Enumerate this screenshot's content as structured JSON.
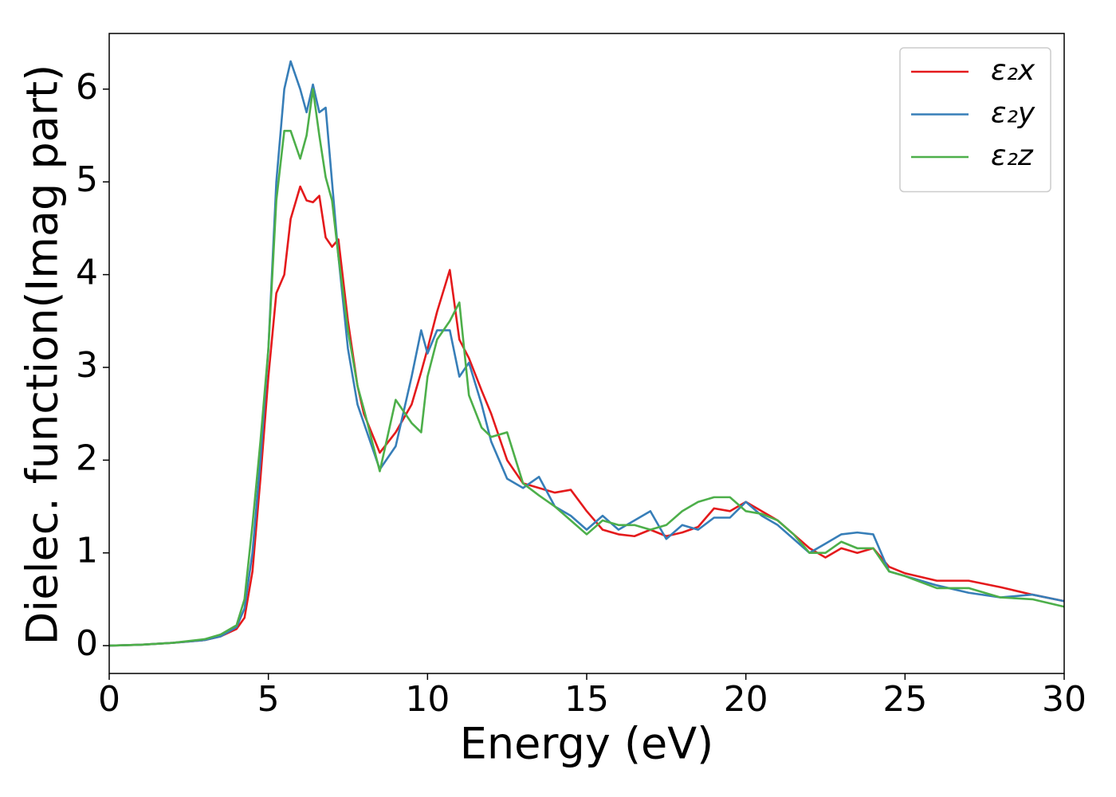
{
  "chart_data": {
    "type": "line",
    "xlabel": "Energy (eV)",
    "ylabel": "Dielec. function(Imag part)",
    "x": [
      0,
      1,
      2,
      3,
      3.5,
      4,
      4.25,
      4.5,
      4.75,
      5,
      5.25,
      5.5,
      5.7,
      6,
      6.2,
      6.4,
      6.6,
      6.8,
      7,
      7.2,
      7.5,
      7.8,
      8,
      8.5,
      9,
      9.5,
      9.8,
      10,
      10.3,
      10.7,
      11,
      11.3,
      11.7,
      12,
      12.5,
      13,
      13.5,
      14,
      14.5,
      15,
      15.5,
      16,
      16.5,
      17,
      17.5,
      18,
      18.5,
      19,
      19.5,
      20,
      20.5,
      21,
      21.5,
      22,
      22.5,
      23,
      23.5,
      24,
      24.5,
      25,
      26,
      27,
      28,
      29,
      30
    ],
    "series": [
      {
        "name": "ε₂x",
        "color": "#e41a1c",
        "values": [
          0,
          0.01,
          0.03,
          0.06,
          0.1,
          0.18,
          0.3,
          0.8,
          1.8,
          2.9,
          3.8,
          4.0,
          4.6,
          4.95,
          4.8,
          4.78,
          4.85,
          4.4,
          4.3,
          4.38,
          3.5,
          2.8,
          2.5,
          2.08,
          2.3,
          2.6,
          2.95,
          3.2,
          3.6,
          4.05,
          3.3,
          3.1,
          2.75,
          2.5,
          2.0,
          1.75,
          1.7,
          1.65,
          1.68,
          1.45,
          1.25,
          1.2,
          1.18,
          1.25,
          1.18,
          1.22,
          1.28,
          1.48,
          1.45,
          1.55,
          1.45,
          1.35,
          1.2,
          1.05,
          0.95,
          1.05,
          1.0,
          1.05,
          0.85,
          0.78,
          0.7,
          0.7,
          0.63,
          0.55,
          0.48
        ]
      },
      {
        "name": "ε₂y",
        "color": "#377eb8",
        "values": [
          0,
          0.01,
          0.03,
          0.06,
          0.1,
          0.2,
          0.4,
          1.0,
          2.0,
          3.2,
          5.0,
          6.0,
          6.3,
          6.0,
          5.75,
          6.05,
          5.75,
          5.8,
          5.0,
          4.2,
          3.2,
          2.6,
          2.4,
          1.9,
          2.15,
          2.9,
          3.4,
          3.15,
          3.4,
          3.4,
          2.9,
          3.05,
          2.6,
          2.2,
          1.8,
          1.7,
          1.82,
          1.5,
          1.4,
          1.25,
          1.4,
          1.25,
          1.35,
          1.45,
          1.15,
          1.3,
          1.25,
          1.38,
          1.38,
          1.55,
          1.4,
          1.3,
          1.15,
          1.0,
          1.1,
          1.2,
          1.22,
          1.2,
          0.8,
          0.75,
          0.65,
          0.57,
          0.52,
          0.55,
          0.48
        ]
      },
      {
        "name": "ε₂z",
        "color": "#4daf4a",
        "values": [
          0,
          0.01,
          0.03,
          0.07,
          0.12,
          0.22,
          0.5,
          1.3,
          2.2,
          3.2,
          4.8,
          5.55,
          5.55,
          5.25,
          5.5,
          6.0,
          5.5,
          5.05,
          4.8,
          4.2,
          3.4,
          2.8,
          2.55,
          1.88,
          2.65,
          2.4,
          2.3,
          2.9,
          3.3,
          3.5,
          3.7,
          2.7,
          2.35,
          2.25,
          2.3,
          1.75,
          1.62,
          1.5,
          1.35,
          1.2,
          1.35,
          1.3,
          1.3,
          1.25,
          1.3,
          1.45,
          1.55,
          1.6,
          1.6,
          1.45,
          1.42,
          1.35,
          1.2,
          1.0,
          1.0,
          1.12,
          1.05,
          1.05,
          0.8,
          0.75,
          0.62,
          0.62,
          0.52,
          0.5,
          0.42
        ]
      }
    ],
    "xlim": [
      0,
      30
    ],
    "ylim": [
      -0.3,
      6.6
    ],
    "xticks": [
      0,
      5,
      10,
      15,
      20,
      25,
      30
    ],
    "yticks": [
      0,
      1,
      2,
      3,
      4,
      5,
      6
    ],
    "grid": false,
    "legend": "upper right"
  }
}
